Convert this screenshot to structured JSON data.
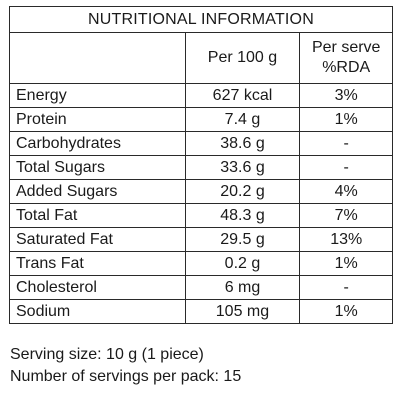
{
  "label": {
    "title": "NUTRITIONAL INFORMATION",
    "headers": {
      "per_100g": "Per 100 g",
      "per_serve_line1": "Per serve",
      "per_serve_line2": "%RDA"
    },
    "rows": [
      {
        "name": "Energy",
        "per_100g": "627 kcal",
        "rda": "3%"
      },
      {
        "name": "Protein",
        "per_100g": "7.4 g",
        "rda": "1%"
      },
      {
        "name": "Carbohydrates",
        "per_100g": "38.6 g",
        "rda": "-"
      },
      {
        "name": "Total Sugars",
        "per_100g": "33.6 g",
        "rda": "-"
      },
      {
        "name": "Added Sugars",
        "per_100g": "20.2 g",
        "rda": "4%"
      },
      {
        "name": "Total Fat",
        "per_100g": "48.3 g",
        "rda": "7%"
      },
      {
        "name": "Saturated Fat",
        "per_100g": "29.5 g",
        "rda": "13%"
      },
      {
        "name": "Trans Fat",
        "per_100g": "0.2 g",
        "rda": "1%"
      },
      {
        "name": "Cholesterol",
        "per_100g": "6 mg",
        "rda": "-"
      },
      {
        "name": "Sodium",
        "per_100g": "105 mg",
        "rda": "1%"
      }
    ],
    "serving_size": "Serving size: 10 g (1 piece)",
    "servings_per_pack": "Number of servings per pack: 15"
  }
}
